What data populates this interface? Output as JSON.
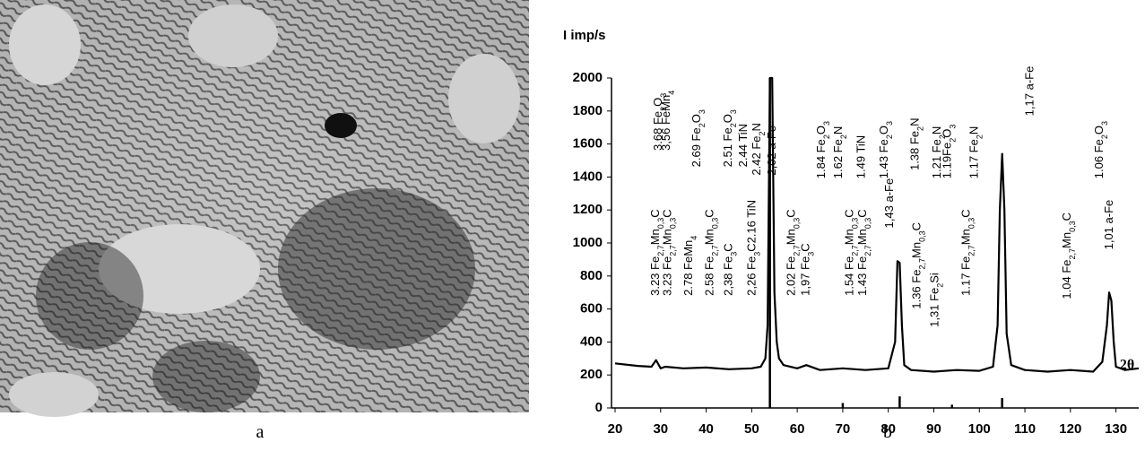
{
  "panel_labels": [
    "a",
    "b"
  ],
  "chart_data": {
    "type": "line",
    "y_label": "I imp/s",
    "x_label": "2θ",
    "xlim": [
      20,
      135
    ],
    "ylim": [
      0,
      2000
    ],
    "xticks": [
      20,
      30,
      40,
      50,
      60,
      70,
      80,
      90,
      100,
      110,
      120,
      130
    ],
    "yticks": [
      0,
      200,
      400,
      600,
      800,
      1000,
      1200,
      1400,
      1600,
      1800,
      2000
    ],
    "grid": false,
    "series": [
      {
        "color": "#000000",
        "x": [
          20,
          25,
          28,
          29,
          30,
          31,
          35,
          40,
          45,
          50,
          52,
          53,
          53.5,
          54,
          54.5,
          55,
          55.5,
          56,
          57,
          60,
          62,
          65,
          70,
          75,
          80,
          81.5,
          82,
          82.5,
          83,
          83.5,
          85,
          90,
          95,
          100,
          103,
          104,
          104.5,
          105,
          105.5,
          106,
          107,
          110,
          115,
          120,
          125,
          127,
          128,
          128.5,
          129,
          129.5,
          130,
          132,
          135
        ],
        "values": [
          270,
          255,
          250,
          290,
          240,
          250,
          240,
          245,
          235,
          240,
          250,
          300,
          500,
          2000,
          2000,
          700,
          400,
          300,
          260,
          240,
          260,
          230,
          240,
          230,
          240,
          400,
          890,
          880,
          500,
          260,
          230,
          220,
          230,
          225,
          250,
          500,
          1200,
          1540,
          1200,
          450,
          260,
          230,
          220,
          230,
          220,
          280,
          500,
          700,
          650,
          400,
          250,
          230,
          240
        ]
      }
    ],
    "sticks": {
      "color": "#000000",
      "x": [
        54,
        70,
        82.5,
        94,
        105
      ],
      "values": [
        2000,
        30,
        70,
        20,
        60
      ]
    },
    "annotations": [
      {
        "x": 29.3,
        "y": 1560,
        "parts": [
          "3.68 Fe",
          "2",
          "O",
          "3"
        ]
      },
      {
        "x": 31.0,
        "y": 1560,
        "parts": [
          "3,56 FeMn",
          "4"
        ]
      },
      {
        "x": 37.7,
        "y": 1460,
        "parts": [
          "2.69 Fe",
          "2",
          "O",
          "3"
        ]
      },
      {
        "x": 44.6,
        "y": 1460,
        "parts": [
          "2.51 Fe",
          "2",
          "O",
          "3"
        ]
      },
      {
        "x": 48.0,
        "y": 1460,
        "parts": [
          "2.44 TiN"
        ]
      },
      {
        "x": 50.9,
        "y": 1410,
        "parts": [
          "2.42 Fe",
          "2",
          "N"
        ]
      },
      {
        "x": 54.3,
        "y": 1410,
        "parts": [
          "2,02 a-Fe"
        ]
      },
      {
        "x": 65.1,
        "y": 1390,
        "parts": [
          "1.84 Fe",
          "2",
          "O",
          "3"
        ]
      },
      {
        "x": 68.8,
        "y": 1390,
        "parts": [
          "1.62 Fe",
          "2",
          "N"
        ]
      },
      {
        "x": 73.9,
        "y": 1390,
        "parts": [
          "1.49 TiN"
        ]
      },
      {
        "x": 78.9,
        "y": 1390,
        "parts": [
          "1.43 Fe",
          "2",
          "O",
          "3"
        ]
      },
      {
        "x": 85.7,
        "y": 1440,
        "parts": [
          "1.38 Fe",
          "2",
          "N"
        ]
      },
      {
        "x": 90.5,
        "y": 1390,
        "parts": [
          "1.21 Fe",
          "2",
          "N"
        ]
      },
      {
        "x": 92.8,
        "y": 1390,
        "parts": [
          "1.19Fe",
          "2",
          "O",
          "3"
        ]
      },
      {
        "x": 98.7,
        "y": 1390,
        "parts": [
          "1.17 Fe",
          "2",
          "N"
        ]
      },
      {
        "x": 110.9,
        "y": 1770,
        "parts": [
          "1,17 a-Fe"
        ]
      },
      {
        "x": 126.1,
        "y": 1390,
        "parts": [
          "1.06 Fe",
          "2",
          "O",
          "3"
        ]
      },
      {
        "x": 28.7,
        "y": 680,
        "parts": [
          "3.23 Fe",
          "2,7",
          "Mn",
          "0,3",
          "C"
        ]
      },
      {
        "x": 31.3,
        "y": 680,
        "parts": [
          "3.23 Fe",
          "2,7",
          "Mn",
          "0,3",
          "C"
        ]
      },
      {
        "x": 36.0,
        "y": 680,
        "parts": [
          "2.78 FeMn",
          "4"
        ]
      },
      {
        "x": 40.6,
        "y": 680,
        "parts": [
          "2.58 Fe",
          "2,7",
          "Mn",
          "0,3",
          "C"
        ]
      },
      {
        "x": 44.7,
        "y": 680,
        "parts": [
          "2,38 Fe",
          "3",
          "C"
        ]
      },
      {
        "x": 49.8,
        "y": 680,
        "parts": [
          "2,26 Fe",
          "3",
          "C2.16 TiN"
        ]
      },
      {
        "x": 58.5,
        "y": 680,
        "parts": [
          "2.02 Fe",
          "2,7",
          "Mn",
          "0,3",
          "C"
        ]
      },
      {
        "x": 61.6,
        "y": 680,
        "parts": [
          "1,97 Fe",
          "3",
          "C"
        ]
      },
      {
        "x": 71.3,
        "y": 680,
        "parts": [
          "1.54 Fe",
          "2,7",
          "Mn",
          "0,3",
          "C"
        ]
      },
      {
        "x": 74.2,
        "y": 680,
        "parts": [
          "1.43 Fe",
          "2,7",
          "Mn",
          "0,3",
          "C"
        ]
      },
      {
        "x": 80.1,
        "y": 1090,
        "parts": [
          "1,43 a-Fe"
        ]
      },
      {
        "x": 86.1,
        "y": 600,
        "parts": [
          "1.36 Fe",
          "2,7",
          "Mn",
          "0,3",
          "C"
        ]
      },
      {
        "x": 90.0,
        "y": 490,
        "parts": [
          "1,31 Fe",
          "2",
          "Si"
        ]
      },
      {
        "x": 96.9,
        "y": 680,
        "parts": [
          "1.17  Fe",
          "2,7",
          "Mn",
          "0,3",
          "C"
        ]
      },
      {
        "x": 119.1,
        "y": 660,
        "parts": [
          "1.04 Fe",
          "2,7",
          "Mn",
          "0,3",
          "C"
        ]
      },
      {
        "x": 128.3,
        "y": 960,
        "parts": [
          "1,01 a-Fe"
        ]
      }
    ]
  }
}
